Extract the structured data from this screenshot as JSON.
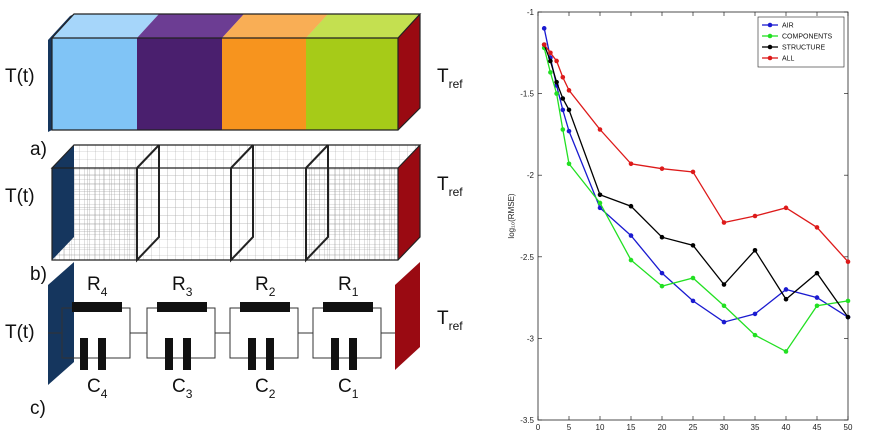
{
  "diagram": {
    "rows": [
      {
        "input": "T(t)",
        "ref": "T",
        "ref_sub": "ref"
      },
      {
        "input": "T(t)",
        "ref": "T",
        "ref_sub": "ref"
      },
      {
        "input": "T(t)",
        "ref": "T",
        "ref_sub": "ref"
      }
    ],
    "panels": [
      "a)",
      "b)",
      "c)"
    ],
    "resistors": [
      {
        "base": "R",
        "sub": "4"
      },
      {
        "base": "R",
        "sub": "3"
      },
      {
        "base": "R",
        "sub": "2"
      },
      {
        "base": "R",
        "sub": "1"
      }
    ],
    "capacitors": [
      {
        "base": "C",
        "sub": "4"
      },
      {
        "base": "C",
        "sub": "3"
      },
      {
        "base": "C",
        "sub": "2"
      },
      {
        "base": "C",
        "sub": "1"
      }
    ]
  },
  "chart_data": {
    "type": "line",
    "y_label": "log₁₀(RMSE)",
    "x": [
      1,
      2,
      3,
      4,
      5,
      10,
      15,
      20,
      25,
      30,
      35,
      40,
      45,
      50
    ],
    "series": [
      {
        "name": "AIR",
        "color": "#1a1ad0",
        "values": [
          -1.1,
          -1.28,
          -1.45,
          -1.6,
          -1.73,
          -2.2,
          -2.37,
          -2.6,
          -2.77,
          -2.9,
          -2.85,
          -2.7,
          -2.75,
          -2.87
        ]
      },
      {
        "name": "COMPONENTS",
        "color": "#22e022",
        "values": [
          -1.22,
          -1.37,
          -1.5,
          -1.72,
          -1.93,
          -2.17,
          -2.52,
          -2.68,
          -2.63,
          -2.8,
          -2.98,
          -3.08,
          -2.8,
          -2.77
        ]
      },
      {
        "name": "STRUCTURE",
        "color": "#000000",
        "values": [
          -1.2,
          -1.3,
          -1.43,
          -1.53,
          -1.6,
          -2.12,
          -2.19,
          -2.38,
          -2.43,
          -2.67,
          -2.46,
          -2.76,
          -2.6,
          -2.87
        ]
      },
      {
        "name": "ALL",
        "color": "#dd1a1a",
        "values": [
          -1.2,
          -1.25,
          -1.3,
          -1.4,
          -1.48,
          -1.72,
          -1.93,
          -1.96,
          -1.98,
          -2.29,
          -2.25,
          -2.2,
          -2.32,
          -2.53
        ]
      }
    ],
    "xlim": [
      0,
      50
    ],
    "xticks": [
      0,
      5,
      10,
      15,
      20,
      25,
      30,
      35,
      40,
      45,
      50
    ],
    "ylim": [
      -3.5,
      -1
    ],
    "yticks": [
      -1,
      -1.5,
      -2,
      -2.5,
      -3,
      -3.5
    ],
    "legend": "upper right"
  }
}
